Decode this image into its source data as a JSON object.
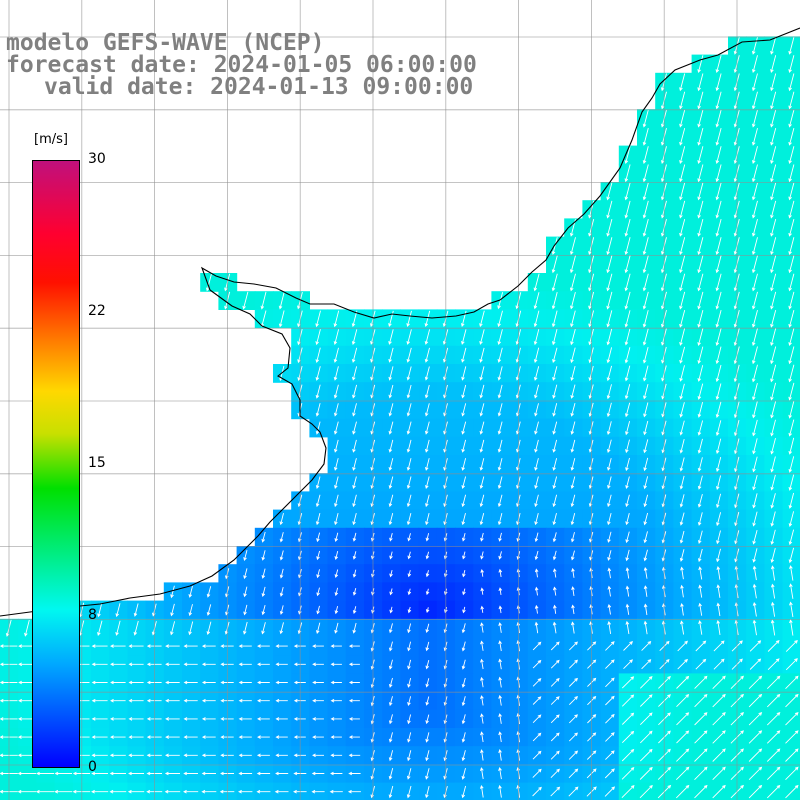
{
  "titles": {
    "line1": "modelo GEFS-WAVE (NCEP)",
    "line2": "forecast date: 2024-01-05 06:00:00",
    "line3": "valid date: 2024-01-13 09:00:00"
  },
  "legend": {
    "unit": "[m/s]",
    "ticks": [
      "30",
      "22",
      "15",
      "8",
      "0"
    ],
    "tick_values": [
      30,
      22,
      15,
      8,
      0
    ],
    "range": [
      0,
      30
    ],
    "colors": [
      "#0000ff",
      "#00a8ff",
      "#00f8f0",
      "#00e000",
      "#c8e000",
      "#ffd800",
      "#ff8000",
      "#ff1000",
      "#ff0030",
      "#c0107c"
    ]
  },
  "map": {
    "field": "wind speed and direction",
    "land_color": "#ffffff",
    "coastline_color": "#000000",
    "grid_color": "#909090",
    "vector_color": "#ffffff",
    "speed_min_visible": 0,
    "speed_max_visible": 9
  }
}
